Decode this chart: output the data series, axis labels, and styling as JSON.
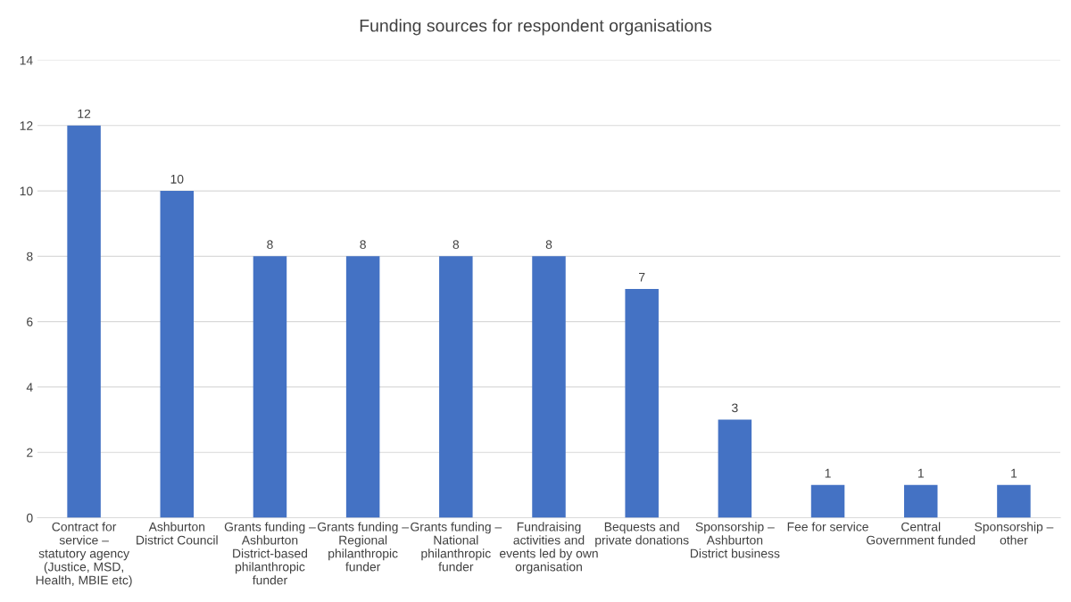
{
  "chart_data": {
    "type": "bar",
    "title": "Funding sources for respondent organisations",
    "categories": [
      "Contract for service – statutory agency (Justice, MSD, Health, MBIE etc)",
      "Ashburton District Council",
      "Grants funding – Ashburton District-based philanthropic funder",
      "Grants funding – Regional philanthropic funder",
      "Grants funding – National philanthropic funder",
      "Fundraising activities and events led by own organisation",
      "Bequests and private donations",
      "Sponsorship – Ashburton District business",
      "Fee for service",
      "Central Government funded",
      "Sponsorship – other"
    ],
    "values": [
      12,
      10,
      8,
      8,
      8,
      8,
      7,
      3,
      1,
      1,
      1
    ],
    "color": "#4472c4",
    "ylim": [
      0,
      14
    ],
    "yticks": [
      0,
      2,
      4,
      6,
      8,
      10,
      12,
      14
    ],
    "grid": "y",
    "data_labels": true
  }
}
